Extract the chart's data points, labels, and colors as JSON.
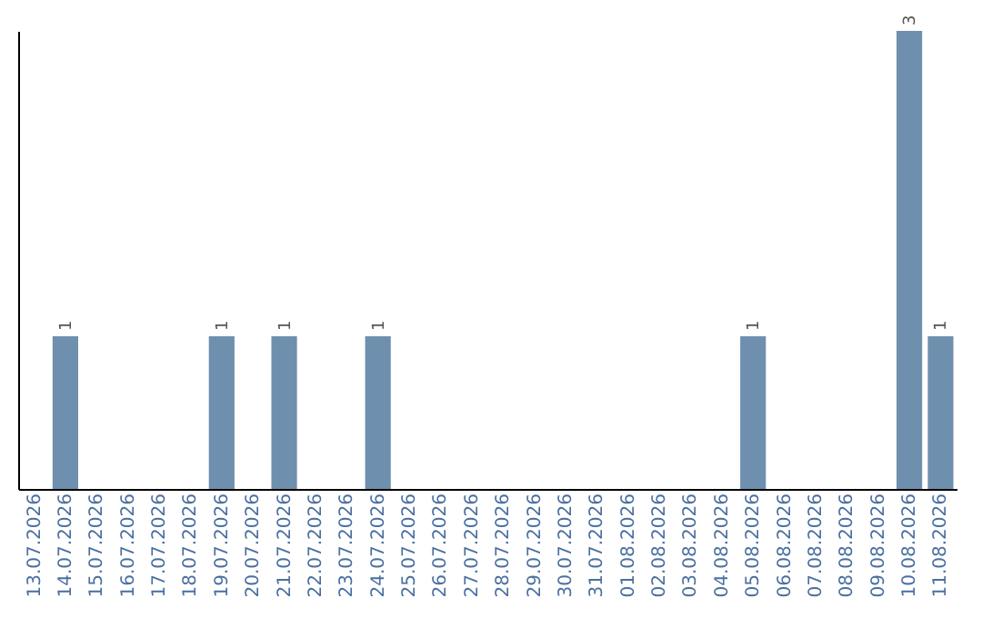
{
  "chart_data": {
    "type": "bar",
    "categories": [
      "13.07.2026",
      "14.07.2026",
      "15.07.2026",
      "16.07.2026",
      "17.07.2026",
      "18.07.2026",
      "19.07.2026",
      "20.07.2026",
      "21.07.2026",
      "22.07.2026",
      "23.07.2026",
      "24.07.2026",
      "25.07.2026",
      "26.07.2026",
      "27.07.2026",
      "28.07.2026",
      "29.07.2026",
      "30.07.2026",
      "31.07.2026",
      "01.08.2026",
      "02.08.2026",
      "03.08.2026",
      "04.08.2026",
      "05.08.2026",
      "06.08.2026",
      "07.08.2026",
      "08.08.2026",
      "09.08.2026",
      "10.08.2026",
      "11.08.2026"
    ],
    "values": [
      0,
      1,
      0,
      0,
      0,
      0,
      1,
      0,
      1,
      0,
      0,
      1,
      0,
      0,
      0,
      0,
      0,
      0,
      0,
      0,
      0,
      0,
      0,
      1,
      0,
      0,
      0,
      0,
      3,
      1
    ],
    "value_labels": [
      null,
      "1",
      null,
      null,
      null,
      null,
      "1",
      null,
      "1",
      null,
      null,
      "1",
      null,
      null,
      null,
      null,
      null,
      null,
      null,
      null,
      null,
      null,
      null,
      "1",
      null,
      null,
      null,
      null,
      "3",
      "1"
    ],
    "color": "#6f8fae",
    "ylim": [
      0,
      3
    ],
    "tick_labels": "x"
  }
}
